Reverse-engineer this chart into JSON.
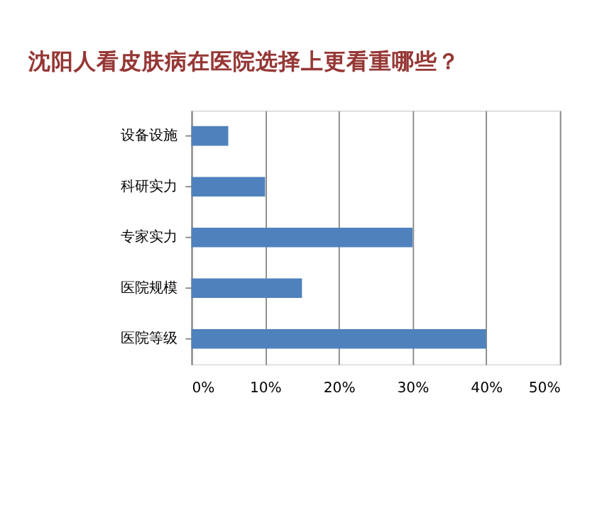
{
  "chart_data": {
    "type": "bar",
    "orientation": "horizontal",
    "title": "沈阳人看皮肤病在医院选择上更看重哪些？",
    "categories": [
      "设备设施",
      "科研实力",
      "专家实力",
      "医院规模",
      "医院等级"
    ],
    "values": [
      5,
      10,
      30,
      15,
      40
    ],
    "color": "#4f81bd",
    "xlim": [
      0,
      50
    ],
    "xticks": [
      {
        "value": 0,
        "label": "0%"
      },
      {
        "value": 10,
        "label": "10%"
      },
      {
        "value": 20,
        "label": "20%"
      },
      {
        "value": 30,
        "label": "30%"
      },
      {
        "value": 40,
        "label": "40%"
      },
      {
        "value": 50,
        "label": "50%"
      }
    ],
    "grid": "x"
  }
}
